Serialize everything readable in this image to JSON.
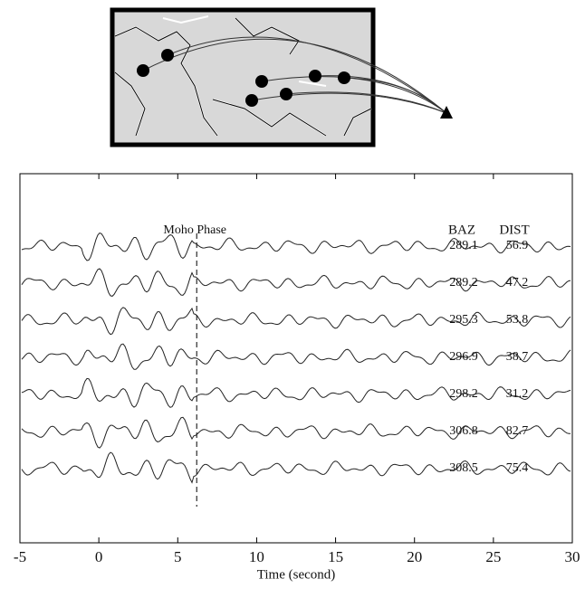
{
  "chart_data": {
    "type": "waveform",
    "xlabel": "Time (second)",
    "xlim": [
      -5,
      30
    ],
    "xticks": [
      -5,
      0,
      5,
      10,
      15,
      20,
      25,
      30
    ],
    "annotation": "Moho Phase",
    "moho_time": 6.2,
    "columns": [
      "BAZ",
      "DIST"
    ],
    "baz": [
      289.1,
      289.2,
      295.3,
      296.9,
      298.2,
      306.8,
      308.5
    ],
    "dist": [
      56.9,
      47.2,
      53.8,
      38.7,
      31.2,
      82.7,
      75.4
    ]
  }
}
